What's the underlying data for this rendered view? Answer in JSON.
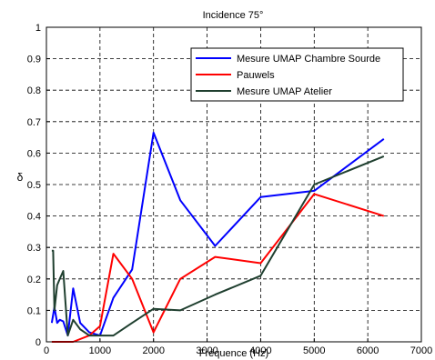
{
  "chart_data": {
    "type": "line",
    "title": "Incidence 75°",
    "xlabel": "Fréquence (Hz)",
    "ylabel": "δ",
    "xlim": [
      0,
      7000
    ],
    "ylim": [
      0,
      1
    ],
    "xticks": [
      0,
      1000,
      2000,
      3000,
      4000,
      5000,
      6000,
      7000
    ],
    "yticks": [
      0,
      0.1,
      0.2,
      0.3,
      0.4,
      0.5,
      0.6,
      0.7,
      0.8,
      0.9,
      1
    ],
    "grid": true,
    "legend_position": "top-right",
    "series": [
      {
        "name": "Mesure UMAP Chambre Sourde",
        "color": "#0000ff",
        "points": [
          [
            100,
            0.06
          ],
          [
            150,
            0.11
          ],
          [
            200,
            0.06
          ],
          [
            250,
            0.07
          ],
          [
            315,
            0.065
          ],
          [
            400,
            0.02
          ],
          [
            500,
            0.17
          ],
          [
            630,
            0.06
          ],
          [
            800,
            0.03
          ],
          [
            1000,
            0.02
          ],
          [
            1250,
            0.14
          ],
          [
            1600,
            0.23
          ],
          [
            2000,
            0.665
          ],
          [
            2500,
            0.45
          ],
          [
            3150,
            0.305
          ],
          [
            4000,
            0.46
          ],
          [
            5000,
            0.48
          ],
          [
            6300,
            0.645
          ]
        ]
      },
      {
        "name": "Pauwels",
        "color": "#ff0000",
        "points": [
          [
            100,
            0
          ],
          [
            200,
            0
          ],
          [
            500,
            0
          ],
          [
            800,
            0.02
          ],
          [
            1000,
            0.05
          ],
          [
            1250,
            0.28
          ],
          [
            1600,
            0.2
          ],
          [
            2000,
            0.03
          ],
          [
            2500,
            0.2
          ],
          [
            3150,
            0.27
          ],
          [
            4000,
            0.25
          ],
          [
            5000,
            0.47
          ],
          [
            6300,
            0.4
          ]
        ]
      },
      {
        "name": "Mesure UMAP Atelier",
        "color": "#1f3f2f",
        "points": [
          [
            100,
            0.29
          ],
          [
            125,
            0.29
          ],
          [
            150,
            0.1
          ],
          [
            200,
            0.18
          ],
          [
            250,
            0.2
          ],
          [
            315,
            0.225
          ],
          [
            400,
            0.02
          ],
          [
            500,
            0.07
          ],
          [
            630,
            0.04
          ],
          [
            800,
            0.02
          ],
          [
            1000,
            0.02
          ],
          [
            1250,
            0.02
          ],
          [
            1600,
            0.06
          ],
          [
            2000,
            0.105
          ],
          [
            2500,
            0.1
          ],
          [
            3150,
            0.15
          ],
          [
            4000,
            0.21
          ],
          [
            5000,
            0.5
          ],
          [
            6300,
            0.59
          ]
        ]
      }
    ]
  }
}
